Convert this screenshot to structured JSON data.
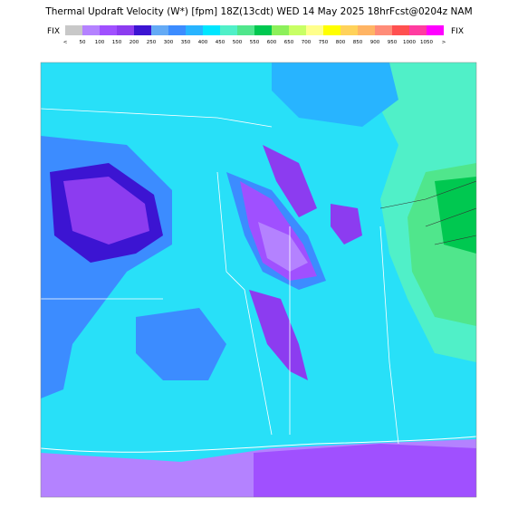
{
  "header": {
    "title": "Thermal Updraft Velocity (W*) [fpm] 18Z(13cdt) WED 14 May 2025 18hrFcst@0204z NAM"
  },
  "legend": {
    "left_label": "FIX",
    "right_label": "FIX",
    "labels": [
      "<",
      "50",
      "100",
      "150",
      "200",
      "250",
      "300",
      "350",
      "400",
      "450",
      "500",
      "550",
      "600",
      "650",
      "700",
      "750",
      "800",
      "850",
      "900",
      "950",
      "1000",
      "1050",
      ">"
    ],
    "colors": [
      "#c8c8c8",
      "#b482ff",
      "#a050ff",
      "#8c3cf0",
      "#3c14d2",
      "#64aaf5",
      "#3c8cff",
      "#28b4ff",
      "#00e6ff",
      "#50f0c8",
      "#50e68c",
      "#00c850",
      "#8cf05a",
      "#c8ff64",
      "#ffff8c",
      "#ffff00",
      "#ffd25a",
      "#ffb464",
      "#ff8c78",
      "#ff5050",
      "#ff3ca0",
      "#ff00ff"
    ]
  }
}
